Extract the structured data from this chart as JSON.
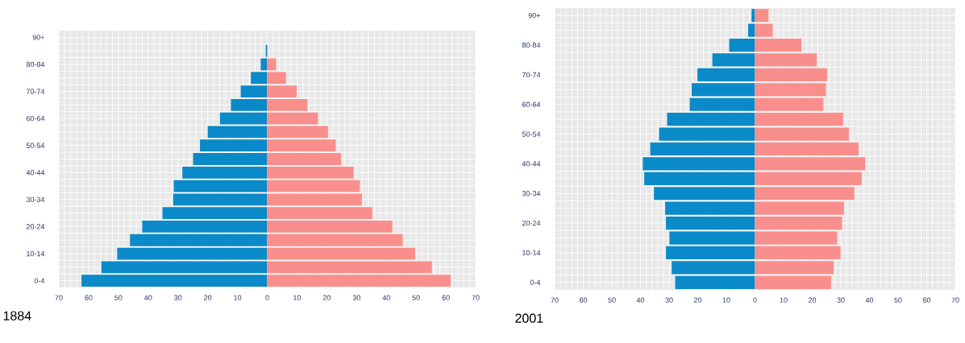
{
  "chart_data": [
    {
      "type": "bar",
      "orientation": "horizontal",
      "stacked": true,
      "title": "1884",
      "categories": [
        "90+",
        null,
        "80-84",
        null,
        "70-74",
        null,
        "60-64",
        null,
        "50-54",
        null,
        "40-44",
        null,
        "30-34",
        null,
        "20-24",
        null,
        "10-14",
        null,
        "0-4"
      ],
      "series": [
        {
          "color": "#0a8ac8",
          "values": [
            0,
            -0.5,
            -2.2,
            -5.5,
            -8.9,
            -12.2,
            -15.9,
            -20,
            -22.6,
            -24.9,
            -28.5,
            -31.4,
            -31.6,
            -35.2,
            -42,
            -46.1,
            -50.4,
            -55.7,
            -62.4
          ]
        },
        {
          "color": "#f98f8c",
          "values": [
            0,
            0,
            3,
            6.3,
            9.9,
            13.5,
            17,
            20.4,
            23,
            24.8,
            29,
            31.1,
            31.8,
            35.3,
            42,
            45.5,
            49.7,
            55.3,
            61.6
          ]
        }
      ],
      "xlim": [
        -70,
        70
      ],
      "xticks": [
        {
          "value": -70,
          "label": "70"
        },
        {
          "value": -60,
          "label": "60"
        },
        {
          "value": -50,
          "label": "50"
        },
        {
          "value": -40,
          "label": "40"
        },
        {
          "value": -30,
          "label": "30"
        },
        {
          "value": -20,
          "label": "20"
        },
        {
          "value": -10,
          "label": "10"
        },
        0,
        10,
        20,
        30,
        40,
        50,
        60,
        70
      ],
      "grid": true
    },
    {
      "type": "bar",
      "orientation": "horizontal",
      "stacked": true,
      "title": "2001",
      "categories": [
        "90+",
        null,
        "80-84",
        null,
        "70-74",
        null,
        "60-64",
        null,
        "50-54",
        null,
        "40-44",
        null,
        "30-34",
        null,
        "20-24",
        null,
        "10-14",
        null,
        "0-4"
      ],
      "series": [
        {
          "color": "#0a8ac8",
          "values": [
            -1.2,
            -2.4,
            -9,
            -14.9,
            -20.1,
            -22.1,
            -22.8,
            -30.7,
            -33.5,
            -36.6,
            -39.2,
            -38.7,
            -35.3,
            -31.4,
            -31.1,
            -29.9,
            -31.1,
            -29.1,
            -27.9
          ]
        },
        {
          "color": "#f98f8c",
          "values": [
            4.7,
            6.2,
            16.2,
            21.6,
            25.2,
            24.8,
            23.9,
            30.8,
            32.8,
            36.2,
            38.5,
            37.3,
            34.7,
            31.1,
            30.4,
            28.7,
            29.9,
            27.5,
            26.6
          ]
        }
      ],
      "xlim": [
        -70,
        70
      ],
      "xticks": [
        {
          "value": -70,
          "label": "70"
        },
        {
          "value": -60,
          "label": "60"
        },
        {
          "value": -50,
          "label": "50"
        },
        {
          "value": -40,
          "label": "40"
        },
        {
          "value": -30,
          "label": "30"
        },
        {
          "value": -20,
          "label": "20"
        },
        {
          "value": -10,
          "label": "10"
        },
        0,
        10,
        20,
        30,
        40,
        50,
        60,
        70
      ],
      "grid": true
    }
  ]
}
